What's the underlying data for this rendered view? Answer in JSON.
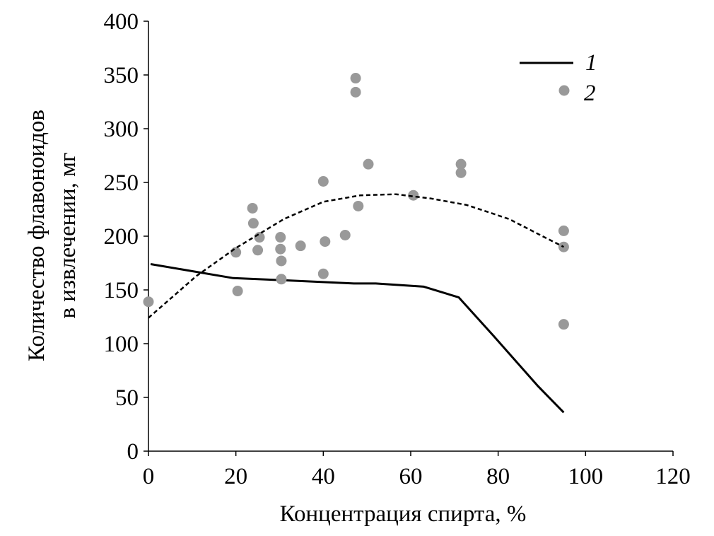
{
  "chart_data": {
    "type": "scatter",
    "title": "",
    "xlabel": "Концентрация спирта, %",
    "ylabel": [
      "Количество флавоноидов",
      "в извлечении, мг"
    ],
    "xlim": [
      0,
      120
    ],
    "ylim": [
      0,
      400
    ],
    "xticks": [
      0,
      20,
      40,
      60,
      80,
      100,
      120
    ],
    "yticks": [
      0,
      50,
      100,
      150,
      200,
      250,
      300,
      350,
      400
    ],
    "grid": false,
    "legend_position": "top-right",
    "series": [
      {
        "name": "1",
        "kind": "line",
        "style": "solid",
        "color": "#000000",
        "points": [
          [
            0.5,
            174
          ],
          [
            19.4,
            161
          ],
          [
            30.7,
            159
          ],
          [
            47,
            156
          ],
          [
            52,
            156
          ],
          [
            63,
            153
          ],
          [
            71,
            143
          ],
          [
            79,
            107
          ],
          [
            89,
            61
          ],
          [
            95,
            36
          ]
        ]
      },
      {
        "name": "2",
        "kind": "scatter",
        "color": "#999999",
        "points": [
          [
            0,
            139
          ],
          [
            20,
            185
          ],
          [
            20.4,
            149
          ],
          [
            23.8,
            226
          ],
          [
            24,
            212
          ],
          [
            25,
            187
          ],
          [
            25.4,
            199
          ],
          [
            30.2,
            199
          ],
          [
            30.2,
            188
          ],
          [
            30.4,
            177
          ],
          [
            30.4,
            160
          ],
          [
            34.8,
            191
          ],
          [
            40,
            165
          ],
          [
            40,
            251
          ],
          [
            40.4,
            195
          ],
          [
            45,
            201
          ],
          [
            47.4,
            347
          ],
          [
            47.4,
            334
          ],
          [
            48,
            228
          ],
          [
            50.3,
            267
          ],
          [
            60.6,
            238
          ],
          [
            71.5,
            267
          ],
          [
            71.5,
            259
          ],
          [
            95,
            205
          ],
          [
            95,
            190
          ],
          [
            95,
            118
          ]
        ]
      },
      {
        "kind": "trendline",
        "style": "dashed",
        "color": "#000000",
        "points": [
          [
            0,
            124
          ],
          [
            11,
            163
          ],
          [
            20,
            189
          ],
          [
            31,
            216
          ],
          [
            40,
            232
          ],
          [
            48.5,
            238
          ],
          [
            56.6,
            239
          ],
          [
            64.7,
            235
          ],
          [
            72.8,
            229
          ],
          [
            82.5,
            216
          ],
          [
            90.6,
            199
          ],
          [
            95,
            190
          ]
        ]
      }
    ]
  }
}
